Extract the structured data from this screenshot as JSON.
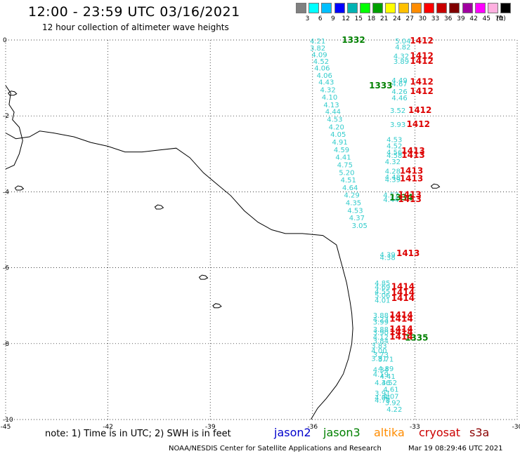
{
  "title": "12:00 - 23:59 UTC 03/16/2021",
  "subtitle": "12 hour collection of altimeter wave heights",
  "legend": {
    "unit": "(ft)",
    "levels": [
      {
        "label": "3",
        "color": "#808080"
      },
      {
        "label": "6",
        "color": "#00ffff"
      },
      {
        "label": "9",
        "color": "#00bfff"
      },
      {
        "label": "12",
        "color": "#0000ff"
      },
      {
        "label": "15",
        "color": "#00b3b3"
      },
      {
        "label": "18",
        "color": "#00ff00"
      },
      {
        "label": "21",
        "color": "#00a000"
      },
      {
        "label": "24",
        "color": "#ffff00"
      },
      {
        "label": "27",
        "color": "#ffc000"
      },
      {
        "label": "30",
        "color": "#ff8c00"
      },
      {
        "label": "33",
        "color": "#ff0000"
      },
      {
        "label": "36",
        "color": "#c80000"
      },
      {
        "label": "39",
        "color": "#800000"
      },
      {
        "label": "42",
        "color": "#a000a0"
      },
      {
        "label": "45",
        "color": "#ff00ff"
      },
      {
        "label": "70",
        "color": "#ffb0e0"
      },
      {
        "label": "",
        "color": "#000000"
      }
    ]
  },
  "axes": {
    "lon_ticks": [
      "-45",
      "-42",
      "-39",
      "-36",
      "-33",
      "-30"
    ],
    "lat_ticks": [
      "0",
      "-2",
      "-4",
      "-6",
      "-8",
      "-10"
    ]
  },
  "note": "note: 1) Time is in UTC; 2) SWH is in feet",
  "satellites": [
    {
      "name": "jason2",
      "color": "#0000cc"
    },
    {
      "name": "jason3",
      "color": "#008000"
    },
    {
      "name": "altika",
      "color": "#ff8c00"
    },
    {
      "name": "cryosat",
      "color": "#cc0000"
    },
    {
      "name": "s3a",
      "color": "#8b0000"
    }
  ],
  "credit": "NOAA/NESDIS Center for Satellite Applications and Research",
  "timestamp": "Mar 19 08:29:46 UTC 2021",
  "colors": {
    "swh": "#33cccc",
    "jason3_time": "#008000",
    "cryosat_time": "#dd0000"
  },
  "track_west": {
    "swh": [
      {
        "lon": -35.85,
        "lat": -0.02,
        "v": "4.21"
      },
      {
        "lon": -35.85,
        "lat": -0.2,
        "v": "3.82"
      },
      {
        "lon": -35.8,
        "lat": -0.38,
        "v": "4.09"
      },
      {
        "lon": -35.75,
        "lat": -0.55,
        "v": "4.52"
      },
      {
        "lon": -35.72,
        "lat": -0.73,
        "v": "4.06"
      },
      {
        "lon": -35.65,
        "lat": -0.92,
        "v": "4.06"
      },
      {
        "lon": -35.6,
        "lat": -1.1,
        "v": "4.43"
      },
      {
        "lon": -35.55,
        "lat": -1.3,
        "v": "4.32"
      },
      {
        "lon": -35.5,
        "lat": -1.5,
        "v": "4.10"
      },
      {
        "lon": -35.45,
        "lat": -1.7,
        "v": "4.13"
      },
      {
        "lon": -35.4,
        "lat": -1.88,
        "v": "4.44"
      },
      {
        "lon": -35.35,
        "lat": -2.08,
        "v": "4.53"
      },
      {
        "lon": -35.3,
        "lat": -2.28,
        "v": "4.20"
      },
      {
        "lon": -35.25,
        "lat": -2.48,
        "v": "4.05"
      },
      {
        "lon": -35.2,
        "lat": -2.68,
        "v": "4.91"
      },
      {
        "lon": -35.15,
        "lat": -2.88,
        "v": "4.59"
      },
      {
        "lon": -35.1,
        "lat": -3.08,
        "v": "4.41"
      },
      {
        "lon": -35.05,
        "lat": -3.28,
        "v": "4.75"
      },
      {
        "lon": -35.0,
        "lat": -3.48,
        "v": "5.20"
      },
      {
        "lon": -34.95,
        "lat": -3.68,
        "v": "4.51"
      },
      {
        "lon": -34.9,
        "lat": -3.88,
        "v": "4.64"
      },
      {
        "lon": -34.85,
        "lat": -4.08,
        "v": "4.29"
      },
      {
        "lon": -34.8,
        "lat": -4.28,
        "v": "4.35"
      },
      {
        "lon": -34.75,
        "lat": -4.48,
        "v": "4.53"
      },
      {
        "lon": -34.7,
        "lat": -4.68,
        "v": "4.37"
      },
      {
        "lon": -34.62,
        "lat": -4.88,
        "v": "3.05"
      }
    ],
    "times": [
      {
        "lon": -34.8,
        "lat": 0.0,
        "v": "1332"
      },
      {
        "lon": -34.0,
        "lat": -1.2,
        "v": "1333"
      },
      {
        "lon": -33.4,
        "lat": -4.15,
        "v": "1334"
      },
      {
        "lon": -32.95,
        "lat": -7.85,
        "v": "1335"
      }
    ]
  },
  "track_east": {
    "swh": [
      {
        "lon": -33.35,
        "lat": -0.02,
        "v": "5.04"
      },
      {
        "lon": -33.35,
        "lat": -0.18,
        "v": "4.82"
      },
      {
        "lon": -33.4,
        "lat": -0.42,
        "v": "4.32"
      },
      {
        "lon": -33.4,
        "lat": -0.55,
        "v": "3.89"
      },
      {
        "lon": -33.45,
        "lat": -1.05,
        "v": "4.49"
      },
      {
        "lon": -33.45,
        "lat": -1.15,
        "v": "4.67"
      },
      {
        "lon": -33.45,
        "lat": -1.35,
        "v": "4.26"
      },
      {
        "lon": -33.45,
        "lat": -1.52,
        "v": "4.46"
      },
      {
        "lon": -33.5,
        "lat": -1.85,
        "v": "3.52"
      },
      {
        "lon": -33.5,
        "lat": -2.22,
        "v": "3.93"
      },
      {
        "lon": -33.6,
        "lat": -2.62,
        "v": "4.53"
      },
      {
        "lon": -33.6,
        "lat": -2.78,
        "v": "4.52"
      },
      {
        "lon": -33.6,
        "lat": -2.95,
        "v": "4.56"
      },
      {
        "lon": -33.6,
        "lat": -3.03,
        "v": "4.58"
      },
      {
        "lon": -33.65,
        "lat": -3.2,
        "v": "4.32"
      },
      {
        "lon": -33.65,
        "lat": -3.45,
        "v": "4.28"
      },
      {
        "lon": -33.65,
        "lat": -3.6,
        "v": "4.48"
      },
      {
        "lon": -33.65,
        "lat": -3.67,
        "v": "4.39"
      },
      {
        "lon": -33.7,
        "lat": -4.08,
        "v": "4.57"
      },
      {
        "lon": -33.7,
        "lat": -4.2,
        "v": "4.44"
      },
      {
        "lon": -33.8,
        "lat": -5.65,
        "v": "4.39"
      },
      {
        "lon": -33.8,
        "lat": -5.72,
        "v": "4.38"
      },
      {
        "lon": -33.95,
        "lat": -6.4,
        "v": "4.85"
      },
      {
        "lon": -33.95,
        "lat": -6.5,
        "v": "4.69"
      },
      {
        "lon": -33.95,
        "lat": -6.62,
        "v": "4.55"
      },
      {
        "lon": -33.95,
        "lat": -6.72,
        "v": "5.06"
      },
      {
        "lon": -33.95,
        "lat": -6.85,
        "v": "4.01"
      },
      {
        "lon": -34.0,
        "lat": -7.25,
        "v": "3.88"
      },
      {
        "lon": -34.0,
        "lat": -7.35,
        "v": "4.23"
      },
      {
        "lon": -34.0,
        "lat": -7.42,
        "v": "3.99"
      },
      {
        "lon": -34.0,
        "lat": -7.62,
        "v": "3.88"
      },
      {
        "lon": -34.0,
        "lat": -7.7,
        "v": "3.90"
      },
      {
        "lon": -34.0,
        "lat": -7.82,
        "v": "4.12"
      },
      {
        "lon": -34.0,
        "lat": -7.92,
        "v": "3.84"
      },
      {
        "lon": -34.05,
        "lat": -8.05,
        "v": "3.83"
      },
      {
        "lon": -34.05,
        "lat": -8.18,
        "v": "4.00"
      },
      {
        "lon": -34.0,
        "lat": -8.28,
        "v": "3.73"
      },
      {
        "lon": -34.05,
        "lat": -8.38,
        "v": "3.81"
      },
      {
        "lon": -33.85,
        "lat": -8.4,
        "v": "3.71"
      },
      {
        "lon": -34.0,
        "lat": -8.68,
        "v": "4.34"
      },
      {
        "lon": -33.85,
        "lat": -8.65,
        "v": "4.89"
      },
      {
        "lon": -34.0,
        "lat": -8.8,
        "v": "4.19"
      },
      {
        "lon": -33.8,
        "lat": -8.85,
        "v": "4.41"
      },
      {
        "lon": -33.95,
        "lat": -9.02,
        "v": "4.36"
      },
      {
        "lon": -33.75,
        "lat": -9.02,
        "v": "4.52"
      },
      {
        "lon": -33.7,
        "lat": -9.2,
        "v": "4.61"
      },
      {
        "lon": -33.95,
        "lat": -9.3,
        "v": "3.91"
      },
      {
        "lon": -33.7,
        "lat": -9.38,
        "v": "4.07"
      },
      {
        "lon": -33.95,
        "lat": -9.42,
        "v": "4.04"
      },
      {
        "lon": -33.95,
        "lat": -9.48,
        "v": "4.78"
      },
      {
        "lon": -33.65,
        "lat": -9.55,
        "v": "3.92"
      },
      {
        "lon": -33.6,
        "lat": -9.72,
        "v": "4.22"
      }
    ],
    "times": [
      {
        "lon": -32.8,
        "lat": -0.02,
        "v": "1412"
      },
      {
        "lon": -32.8,
        "lat": -0.42,
        "v": "1412"
      },
      {
        "lon": -32.8,
        "lat": -0.55,
        "v": "1412"
      },
      {
        "lon": -32.8,
        "lat": -1.1,
        "v": "1412"
      },
      {
        "lon": -32.8,
        "lat": -1.35,
        "v": "1412"
      },
      {
        "lon": -32.85,
        "lat": -1.85,
        "v": "1412"
      },
      {
        "lon": -32.9,
        "lat": -2.22,
        "v": "1412"
      },
      {
        "lon": -33.05,
        "lat": -2.92,
        "v": "1413"
      },
      {
        "lon": -33.05,
        "lat": -3.03,
        "v": "1413"
      },
      {
        "lon": -33.1,
        "lat": -3.45,
        "v": "1413"
      },
      {
        "lon": -33.1,
        "lat": -3.65,
        "v": "1413"
      },
      {
        "lon": -33.15,
        "lat": -4.08,
        "v": "1413"
      },
      {
        "lon": -33.15,
        "lat": -4.2,
        "v": "1413"
      },
      {
        "lon": -33.2,
        "lat": -5.62,
        "v": "1413"
      },
      {
        "lon": -33.35,
        "lat": -6.5,
        "v": "1414"
      },
      {
        "lon": -33.35,
        "lat": -6.65,
        "v": "1414"
      },
      {
        "lon": -33.35,
        "lat": -6.8,
        "v": "1414"
      },
      {
        "lon": -33.4,
        "lat": -7.25,
        "v": "1414"
      },
      {
        "lon": -33.4,
        "lat": -7.35,
        "v": "1414"
      },
      {
        "lon": -33.4,
        "lat": -7.62,
        "v": "1414"
      },
      {
        "lon": -33.4,
        "lat": -7.7,
        "v": "1414"
      },
      {
        "lon": -33.4,
        "lat": -7.82,
        "v": "1414"
      }
    ]
  },
  "coastline": [
    {
      "lon": -45.0,
      "lat": -2.45
    },
    {
      "lon": -44.7,
      "lat": -2.6
    },
    {
      "lon": -44.3,
      "lat": -2.55
    },
    {
      "lon": -44.0,
      "lat": -2.4
    },
    {
      "lon": -43.6,
      "lat": -2.45
    },
    {
      "lon": -43.0,
      "lat": -2.55
    },
    {
      "lon": -42.5,
      "lat": -2.7
    },
    {
      "lon": -42.0,
      "lat": -2.8
    },
    {
      "lon": -41.5,
      "lat": -2.95
    },
    {
      "lon": -41.0,
      "lat": -2.95
    },
    {
      "lon": -40.5,
      "lat": -2.9
    },
    {
      "lon": -40.0,
      "lat": -2.85
    },
    {
      "lon": -39.6,
      "lat": -3.1
    },
    {
      "lon": -39.2,
      "lat": -3.5
    },
    {
      "lon": -38.8,
      "lat": -3.8
    },
    {
      "lon": -38.4,
      "lat": -4.1
    },
    {
      "lon": -38.0,
      "lat": -4.5
    },
    {
      "lon": -37.6,
      "lat": -4.8
    },
    {
      "lon": -37.2,
      "lat": -5.0
    },
    {
      "lon": -36.8,
      "lat": -5.1
    },
    {
      "lon": -36.3,
      "lat": -5.1
    },
    {
      "lon": -35.7,
      "lat": -5.15
    },
    {
      "lon": -35.3,
      "lat": -5.4
    },
    {
      "lon": -35.15,
      "lat": -5.9
    },
    {
      "lon": -35.0,
      "lat": -6.4
    },
    {
      "lon": -34.9,
      "lat": -6.9
    },
    {
      "lon": -34.85,
      "lat": -7.2
    },
    {
      "lon": -34.82,
      "lat": -7.6
    },
    {
      "lon": -34.85,
      "lat": -8.0
    },
    {
      "lon": -34.95,
      "lat": -8.4
    },
    {
      "lon": -35.1,
      "lat": -8.8
    },
    {
      "lon": -35.3,
      "lat": -9.1
    },
    {
      "lon": -35.6,
      "lat": -9.45
    },
    {
      "lon": -35.85,
      "lat": -9.7
    },
    {
      "lon": -36.05,
      "lat": -10.0
    }
  ],
  "coastline_nw": [
    {
      "lon": -45.0,
      "lat": -1.2
    },
    {
      "lon": -44.85,
      "lat": -1.4
    },
    {
      "lon": -44.9,
      "lat": -1.7
    },
    {
      "lon": -44.75,
      "lat": -1.9
    },
    {
      "lon": -44.8,
      "lat": -2.1
    },
    {
      "lon": -44.6,
      "lat": -2.3
    },
    {
      "lon": -44.5,
      "lat": -2.65
    },
    {
      "lon": -44.6,
      "lat": -3.0
    },
    {
      "lon": -44.75,
      "lat": -3.3
    },
    {
      "lon": -45.0,
      "lat": -3.4
    }
  ],
  "islands": [
    {
      "lon": -40.5,
      "lat": -4.4
    },
    {
      "lon": -39.2,
      "lat": -6.25
    },
    {
      "lon": -38.8,
      "lat": -7.0
    },
    {
      "lon": -44.8,
      "lat": -1.4
    },
    {
      "lon": -44.6,
      "lat": -3.9
    },
    {
      "lon": -32.4,
      "lat": -3.85
    }
  ]
}
